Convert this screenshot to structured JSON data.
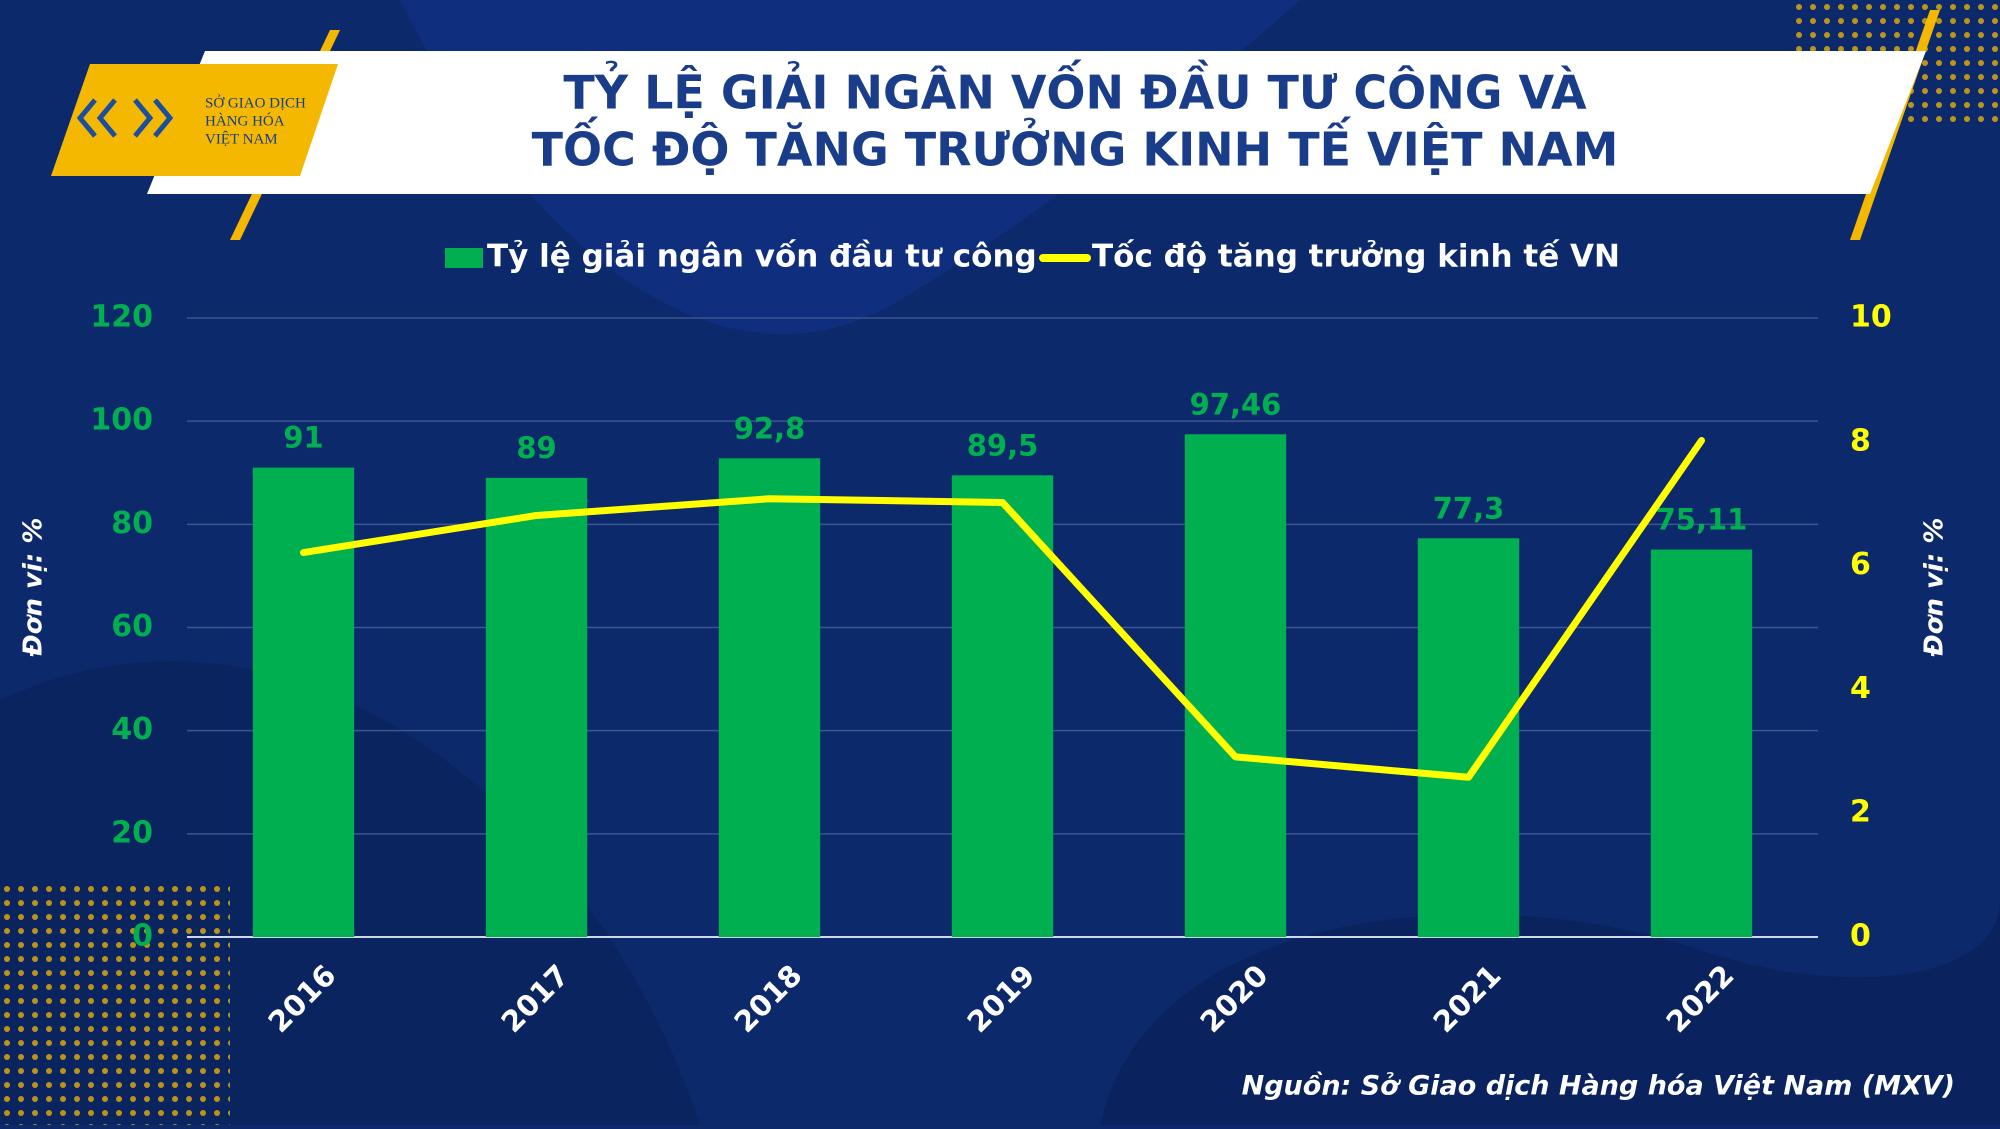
{
  "logo": {
    "lines": [
      "SỞ GIAO DỊCH",
      "HÀNG HÓA",
      "VIỆT NAM"
    ]
  },
  "source": "Nguồn: Sở Giao dịch Hàng hóa Việt Nam (MXV)",
  "chart_data": {
    "type": "bar",
    "title": [
      "TỶ LỆ GIẢI NGÂN VỐN ĐẦU TƯ CÔNG VÀ",
      "TỐC ĐỘ TĂNG TRƯỞNG KINH TẾ VIỆT NAM"
    ],
    "y_label": "Đơn vị: %",
    "y2_label": "Đơn vị: %",
    "categories": [
      "2016",
      "2017",
      "2018",
      "2019",
      "2020",
      "2021",
      "2022"
    ],
    "series": [
      {
        "name": "Tỷ lệ giải ngân vốn đầu tư công",
        "type": "bar",
        "color": "#00b050",
        "values": [
          91,
          89,
          92.8,
          89.5,
          97.46,
          77.3,
          75.11
        ],
        "value_labels": [
          "91",
          "89",
          "92,8",
          "89,5",
          "97,46",
          "77,3",
          "75,11"
        ]
      },
      {
        "name": "Tốc độ tăng trưởng kinh tế VN",
        "type": "line",
        "axis": "y2",
        "color": "#ffff00",
        "values": [
          6.21,
          6.81,
          7.08,
          7.02,
          2.91,
          2.58,
          8.02
        ]
      }
    ],
    "ylim": [
      0,
      120
    ],
    "yticks": [
      0,
      20,
      40,
      60,
      80,
      100,
      120
    ],
    "y2lim": [
      0,
      10
    ],
    "y2ticks": [
      0,
      2,
      4,
      6,
      8,
      10
    ],
    "grid": true
  }
}
